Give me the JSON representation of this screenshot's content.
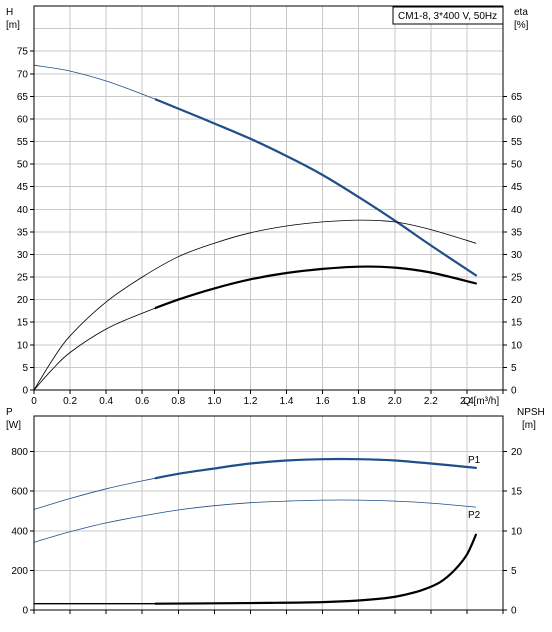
{
  "chart_data": [
    {
      "type": "line",
      "legend_box": "CM1-8, 3*400 V, 50Hz",
      "legend_placement": "top-right",
      "grid": true,
      "xlabel": "Q [m³/h]",
      "x_ticks": [
        "0",
        "0.2",
        "0.4",
        "0.6",
        "0.8",
        "1.0",
        "1.2",
        "1.4",
        "1.6",
        "1.8",
        "2.0",
        "2.2",
        "2.4"
      ],
      "xlim": [
        0,
        2.6
      ],
      "y_left": {
        "unit_top": "H",
        "unit_bottom": "[m]",
        "ylim": [
          0,
          85
        ],
        "ticks": [
          "0",
          "5",
          "10",
          "15",
          "20",
          "25",
          "30",
          "35",
          "40",
          "45",
          "50",
          "55",
          "60",
          "65",
          "70",
          "75"
        ]
      },
      "y_right": {
        "unit_top": "eta",
        "unit_bottom": "[%]",
        "ylim": [
          0,
          85
        ],
        "ticks": [
          "0",
          "5",
          "10",
          "15",
          "20",
          "25",
          "30",
          "35",
          "40",
          "45",
          "50",
          "55",
          "60",
          "65"
        ]
      },
      "series": [
        {
          "axis": "left",
          "color": "#1f4f8a",
          "width_thin": 0.8,
          "width_thick": 2.2,
          "thick_range": [
            0.67,
            2.45
          ],
          "x": [
            0,
            0.2,
            0.4,
            0.6,
            0.8,
            1.0,
            1.2,
            1.4,
            1.6,
            1.8,
            2.0,
            2.2,
            2.45
          ],
          "y": [
            71.9,
            70.6,
            68.4,
            65.5,
            62.3,
            59.0,
            55.6,
            51.8,
            47.6,
            42.7,
            37.5,
            32.0,
            25.4
          ]
        },
        {
          "axis": "left",
          "color": "#000000",
          "width_thin": 0.8,
          "width_thick": 0.8,
          "thick_range": [
            0,
            0
          ],
          "x": [
            0,
            0.1,
            0.2,
            0.4,
            0.6,
            0.8,
            1.0,
            1.2,
            1.4,
            1.6,
            1.8,
            2.0,
            2.2,
            2.45
          ],
          "y": [
            0,
            6.5,
            12,
            19.5,
            25,
            29.5,
            32.5,
            34.8,
            36.3,
            37.2,
            37.6,
            37.2,
            35.5,
            32.5
          ]
        },
        {
          "axis": "left",
          "color": "#000000",
          "width_thin": 0.8,
          "width_thick": 2.2,
          "thick_range": [
            0.67,
            2.45
          ],
          "x": [
            0,
            0.1,
            0.2,
            0.4,
            0.6,
            0.8,
            1.0,
            1.2,
            1.4,
            1.6,
            1.8,
            2.0,
            2.2,
            2.45
          ],
          "y": [
            0,
            4.5,
            8.3,
            13.5,
            17.0,
            20.0,
            22.5,
            24.5,
            25.9,
            26.8,
            27.3,
            27.1,
            26.0,
            23.6
          ]
        }
      ]
    },
    {
      "type": "line",
      "grid": true,
      "xlim": [
        0,
        2.6
      ],
      "y_left": {
        "unit_top": "P",
        "unit_bottom": "[W]",
        "ylim": [
          0,
          980
        ],
        "ticks": [
          "0",
          "200",
          "400",
          "600",
          "800"
        ]
      },
      "y_right": {
        "unit_top": "NPSH",
        "unit_bottom": "[m]",
        "ylim": [
          0,
          24.5
        ],
        "ticks": [
          "0",
          "5",
          "10",
          "15",
          "20"
        ]
      },
      "series": [
        {
          "name": "P1",
          "axis": "left",
          "color": "#1f4f8a",
          "width_thin": 0.8,
          "width_thick": 2.2,
          "thick_range": [
            0.67,
            2.45
          ],
          "x": [
            0,
            0.2,
            0.4,
            0.6,
            0.8,
            1.0,
            1.2,
            1.4,
            1.6,
            1.8,
            2.0,
            2.2,
            2.45
          ],
          "y": [
            508,
            563,
            612,
            652,
            688,
            715,
            740,
            755,
            762,
            762,
            755,
            740,
            718
          ]
        },
        {
          "name": "P2",
          "axis": "left",
          "color": "#1f4f8a",
          "width_thin": 0.8,
          "width_thick": 0.8,
          "thick_range": [
            0,
            0
          ],
          "x": [
            0,
            0.2,
            0.4,
            0.6,
            0.8,
            1.0,
            1.2,
            1.4,
            1.6,
            1.8,
            2.0,
            2.2,
            2.45
          ],
          "y": [
            342,
            395,
            440,
            475,
            505,
            527,
            542,
            550,
            555,
            555,
            550,
            540,
            520
          ]
        },
        {
          "axis": "right",
          "color": "#000000",
          "width_thin": 1.4,
          "width_thick": 2.2,
          "thick_range": [
            0.67,
            2.45
          ],
          "x": [
            0,
            0.67,
            1.0,
            1.3,
            1.6,
            1.8,
            1.95,
            2.05,
            2.15,
            2.25,
            2.33,
            2.4,
            2.45
          ],
          "y": [
            0.8,
            0.8,
            0.85,
            0.9,
            1.0,
            1.2,
            1.5,
            1.9,
            2.5,
            3.5,
            5.0,
            7.0,
            9.5
          ]
        }
      ]
    }
  ]
}
